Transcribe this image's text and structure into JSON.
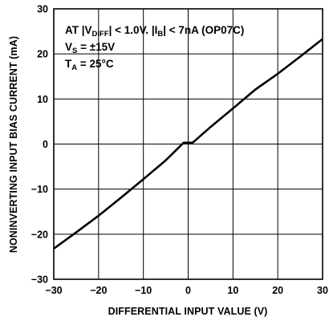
{
  "chart_data": {
    "type": "line",
    "title": "",
    "xlabel": "DIFFERENTIAL INPUT VALUE (V)",
    "ylabel": "NONINVERTING INPUT BIAS CURRENT (mA)",
    "xlim": [
      -30,
      30
    ],
    "ylim": [
      -30,
      30
    ],
    "xticks": [
      -30,
      -20,
      -10,
      0,
      10,
      20,
      30
    ],
    "yticks": [
      -30,
      -20,
      -10,
      0,
      10,
      20,
      30
    ],
    "xtick_labels": [
      "−30",
      "−20",
      "−10",
      "0",
      "10",
      "20",
      "30"
    ],
    "ytick_labels": [
      "−30",
      "−20",
      "−10",
      "0",
      "10",
      "20",
      "30"
    ],
    "grid": true,
    "series": [
      {
        "x": [
          -30,
          -25,
          -20,
          -15,
          -10,
          -5,
          -1,
          1,
          5,
          10,
          15,
          20,
          25,
          30
        ],
        "y": [
          -23.2,
          -19.6,
          -15.9,
          -11.9,
          -7.8,
          -3.6,
          0.3,
          0.3,
          3.8,
          7.9,
          12.1,
          15.6,
          19.4,
          23.3
        ]
      }
    ],
    "annotations": {
      "line1": {
        "text": "AT |V",
        "sub": "DIFF",
        "rest": "| < 1.0V. |I",
        "sub2": "B",
        "rest2": "| < 7nA (OP07C)"
      },
      "line2": {
        "text": "V",
        "sub": "S",
        "rest": " = ±15V"
      },
      "line3": {
        "text": "T",
        "sub": "A",
        "rest": " = 25°C"
      }
    },
    "colors": {
      "line": "#000000",
      "grid": "#000000",
      "background": "#ffffff"
    }
  }
}
